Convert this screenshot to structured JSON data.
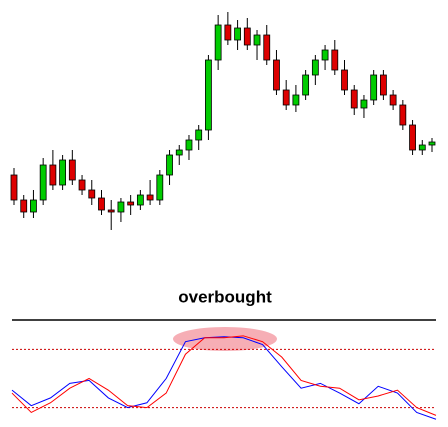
{
  "chart_data": [
    {
      "type": "candlestick",
      "up_color": "#00cc00",
      "down_color": "#dd0000",
      "ylim": [
        0,
        250
      ],
      "open": [
        75,
        50,
        38,
        50,
        85,
        65,
        90,
        70,
        60,
        52,
        40,
        38,
        48,
        45,
        55,
        50,
        75,
        95,
        100,
        110,
        120,
        190,
        225,
        210,
        222,
        205,
        215,
        190,
        160,
        145,
        155,
        175,
        190,
        200,
        180,
        160,
        142,
        150,
        175,
        155,
        145,
        125,
        100,
        105
      ],
      "high": [
        82,
        55,
        60,
        92,
        100,
        95,
        100,
        75,
        70,
        60,
        50,
        52,
        55,
        60,
        70,
        80,
        100,
        105,
        115,
        125,
        195,
        235,
        238,
        230,
        232,
        220,
        225,
        200,
        170,
        165,
        180,
        195,
        205,
        210,
        190,
        165,
        155,
        180,
        180,
        160,
        150,
        130,
        110,
        112
      ],
      "low": [
        45,
        32,
        32,
        45,
        60,
        60,
        65,
        55,
        45,
        35,
        20,
        28,
        35,
        40,
        45,
        45,
        65,
        85,
        90,
        100,
        110,
        180,
        205,
        200,
        200,
        190,
        185,
        155,
        140,
        138,
        150,
        165,
        180,
        175,
        155,
        135,
        132,
        145,
        150,
        140,
        120,
        95,
        95,
        98
      ],
      "close": [
        50,
        38,
        50,
        85,
        65,
        90,
        70,
        60,
        52,
        40,
        38,
        48,
        45,
        55,
        50,
        75,
        95,
        100,
        110,
        120,
        190,
        225,
        210,
        222,
        205,
        215,
        190,
        160,
        145,
        155,
        175,
        190,
        200,
        180,
        160,
        142,
        150,
        175,
        155,
        145,
        125,
        100,
        105,
        108
      ]
    },
    {
      "type": "line",
      "title": "overbought",
      "ylim": [
        0,
        100
      ],
      "xlim": [
        0,
        22
      ],
      "levels": [
        80,
        20
      ],
      "level_color": "#cc0000",
      "x": [
        0,
        1,
        2,
        3,
        4,
        5,
        6,
        7,
        8,
        9,
        10,
        11,
        12,
        13,
        14,
        15,
        16,
        17,
        18,
        19,
        20,
        21,
        22
      ],
      "series": [
        {
          "color": "#0000ff",
          "values": [
            38,
            22,
            30,
            45,
            48,
            30,
            20,
            25,
            50,
            88,
            92,
            93,
            92,
            85,
            62,
            40,
            45,
            35,
            24,
            42,
            35,
            15,
            8
          ]
        },
        {
          "color": "#ff0000",
          "values": [
            35,
            15,
            25,
            40,
            50,
            38,
            22,
            20,
            35,
            75,
            92,
            92,
            94,
            88,
            72,
            48,
            42,
            40,
            28,
            32,
            38,
            20,
            12
          ]
        }
      ]
    }
  ]
}
